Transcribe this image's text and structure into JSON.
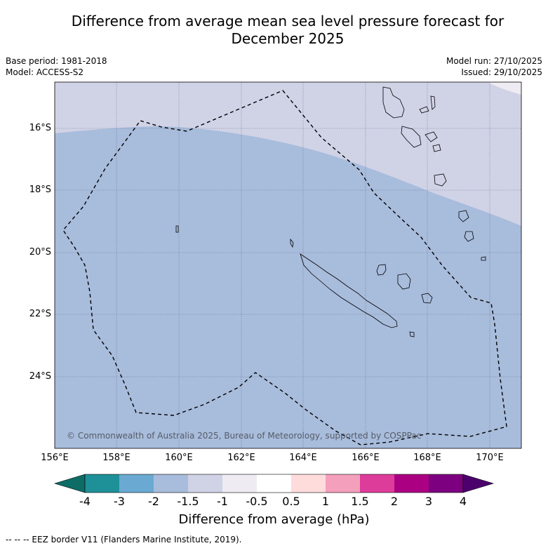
{
  "title_line1": "Difference from average mean sea level pressure forecast for",
  "title_line2": "December 2025",
  "meta": {
    "base_period": "Base period: 1981-2018",
    "model": "Model: ACCESS-S2",
    "model_run": "Model run: 27/10/2025",
    "issued": "Issued: 29/10/2025"
  },
  "map": {
    "lon_ticks": [
      "156°E",
      "158°E",
      "160°E",
      "162°E",
      "164°E",
      "166°E",
      "168°E",
      "170°E"
    ],
    "lat_ticks": [
      "16°S",
      "18°S",
      "20°S",
      "22°S",
      "24°S"
    ],
    "copyright": "© Commonwealth of Australia 2025, Bureau of Meteorology, supported by COSPPac",
    "colors": {
      "field_minus2_to_minus1_5": "#a8bcdc",
      "field_minus1_5_to_minus1": "#d0d2e6",
      "field_minus1_to_minus0_5": "#eeecf2"
    }
  },
  "colorbar": {
    "ticks": [
      "-4",
      "-3",
      "-2",
      "-1.5",
      "-1",
      "-0.5",
      "0.5",
      "1",
      "1.5",
      "2",
      "3",
      "4"
    ],
    "colors": [
      "#0e6c66",
      "#1e9098",
      "#6aaad2",
      "#a8bcdc",
      "#d0d2e6",
      "#eeecf2",
      "#ffffff",
      "#ffdcdc",
      "#f4a0bc",
      "#de3c9a",
      "#ac0082",
      "#7c0080",
      "#4c006c"
    ],
    "label": "Difference from average (hPa)"
  },
  "footnote": "--  --  -- EEZ border V11 (Flanders Marine Institute, 2019)."
}
